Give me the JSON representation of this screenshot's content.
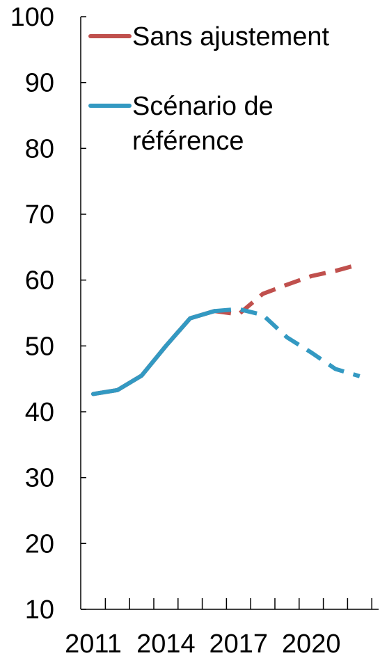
{
  "chart_data": {
    "type": "line",
    "title": "",
    "xlabel": "",
    "ylabel": "",
    "x": [
      2011,
      2012,
      2013,
      2014,
      2015,
      2016,
      2017,
      2018,
      2019,
      2020,
      2021,
      2022
    ],
    "x_tick_labels": [
      "2011",
      "2014",
      "2017",
      "2020"
    ],
    "ylim": [
      10,
      100
    ],
    "y_ticks": [
      10,
      20,
      30,
      40,
      50,
      60,
      70,
      80,
      90,
      100
    ],
    "grid": false,
    "legend_placement": "top-left",
    "series": [
      {
        "name": "Sans ajustement",
        "color": "#c0504d",
        "values": [
          42.7,
          43.3,
          45.5,
          50.0,
          54.2,
          55.3,
          54.8,
          57.9,
          59.3,
          60.6,
          61.4,
          62.4
        ],
        "dashed_from": 2016
      },
      {
        "name": "Scénario de référence",
        "legend_lines": [
          "Scénario de",
          "référence"
        ],
        "color": "#3399c2",
        "values": [
          42.7,
          43.3,
          45.5,
          50.0,
          54.2,
          55.3,
          55.6,
          54.7,
          51.3,
          49.0,
          46.5,
          45.4
        ],
        "dashed_from": 2016
      }
    ]
  }
}
